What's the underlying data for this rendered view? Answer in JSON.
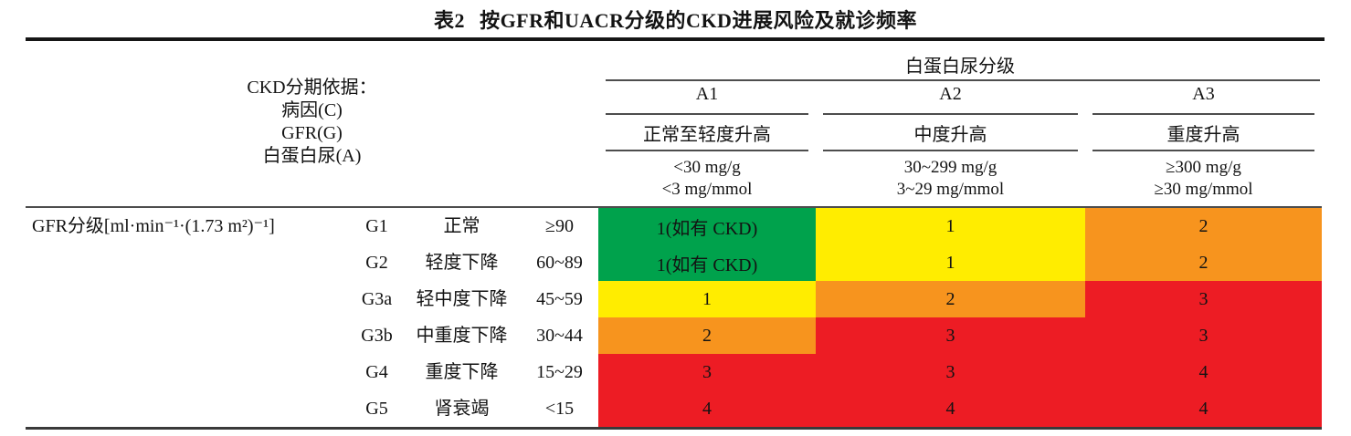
{
  "title": {
    "number": "表2",
    "text": "按GFR和UACR分级的CKD进展风险及就诊频率"
  },
  "colors": {
    "green": "#00A24C",
    "yellow": "#FFED00",
    "orange": "#F7941E",
    "red": "#ED1C24"
  },
  "header": {
    "stage_basis_lines": [
      "CKD分期依据：",
      "病因(C)",
      "GFR(G)",
      "白蛋白尿(A)"
    ],
    "albuminuria_group_title": "白蛋白尿分级",
    "albuminuria_columns": [
      {
        "code": "A1",
        "severity": "正常至轻度升高",
        "range_mg_g": "<30 mg/g",
        "range_mg_mmol": "<3 mg/mmol"
      },
      {
        "code": "A2",
        "severity": "中度升高",
        "range_mg_g": "30~299 mg/g",
        "range_mg_mmol": "3~29 mg/mmol"
      },
      {
        "code": "A3",
        "severity": "重度升高",
        "range_mg_g": "≥300 mg/g",
        "range_mg_mmol": "≥30 mg/mmol"
      }
    ]
  },
  "gfr_axis_label": "GFR分级[ml·min⁻¹·(1.73 m²)⁻¹]",
  "rows": [
    {
      "code": "G1",
      "desc": "正常",
      "range": "≥90",
      "cells": [
        {
          "text": "1(如有 CKD)",
          "color": "green"
        },
        {
          "text": "1",
          "color": "yellow"
        },
        {
          "text": "2",
          "color": "orange"
        }
      ]
    },
    {
      "code": "G2",
      "desc": "轻度下降",
      "range": "60~89",
      "cells": [
        {
          "text": "1(如有 CKD)",
          "color": "green"
        },
        {
          "text": "1",
          "color": "yellow"
        },
        {
          "text": "2",
          "color": "orange"
        }
      ]
    },
    {
      "code": "G3a",
      "desc": "轻中度下降",
      "range": "45~59",
      "cells": [
        {
          "text": "1",
          "color": "yellow"
        },
        {
          "text": "2",
          "color": "orange"
        },
        {
          "text": "3",
          "color": "red"
        }
      ]
    },
    {
      "code": "G3b",
      "desc": "中重度下降",
      "range": "30~44",
      "cells": [
        {
          "text": "2",
          "color": "orange"
        },
        {
          "text": "3",
          "color": "red"
        },
        {
          "text": "3",
          "color": "red"
        }
      ]
    },
    {
      "code": "G4",
      "desc": "重度下降",
      "range": "15~29",
      "cells": [
        {
          "text": "3",
          "color": "red"
        },
        {
          "text": "3",
          "color": "red"
        },
        {
          "text": "4",
          "color": "red"
        }
      ]
    },
    {
      "code": "G5",
      "desc": "肾衰竭",
      "range": "<15",
      "cells": [
        {
          "text": "4",
          "color": "red"
        },
        {
          "text": "4",
          "color": "red"
        },
        {
          "text": "4",
          "color": "red"
        }
      ]
    }
  ]
}
